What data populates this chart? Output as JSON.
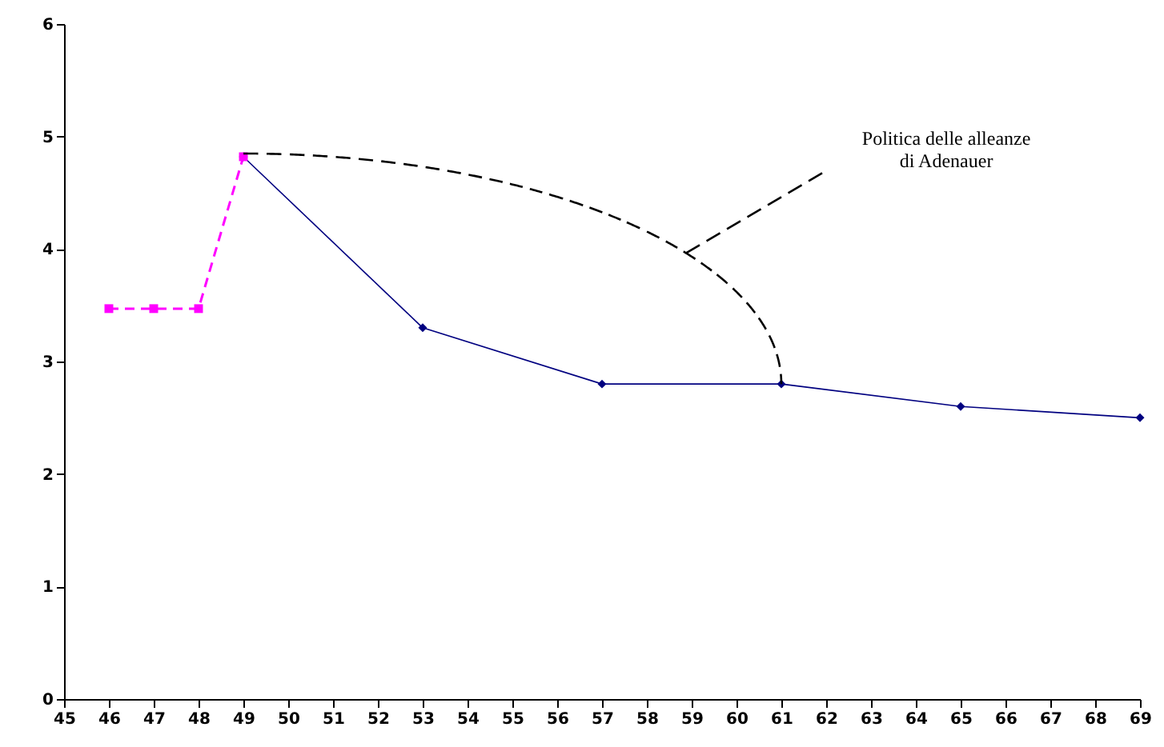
{
  "chart_data": {
    "type": "line",
    "xlim": [
      45,
      69
    ],
    "xticks": [
      45,
      46,
      47,
      48,
      49,
      50,
      51,
      52,
      53,
      54,
      55,
      56,
      57,
      58,
      59,
      60,
      61,
      62,
      63,
      64,
      65,
      66,
      67,
      68,
      69
    ],
    "ylim": [
      0,
      6
    ],
    "yticks": [
      0,
      1,
      2,
      3,
      4,
      5,
      6
    ],
    "series": [
      {
        "color": "#ff00ff",
        "marker": "square",
        "line_style": "dashed",
        "x": [
          46,
          47,
          48,
          49
        ],
        "values": [
          3.47,
          3.47,
          3.47,
          4.82
        ]
      },
      {
        "color": "#000080",
        "marker": "diamond",
        "line_style": "solid",
        "x": [
          49,
          53,
          57,
          61,
          65,
          69
        ],
        "values": [
          4.82,
          3.3,
          2.8,
          2.8,
          2.6,
          2.5
        ]
      }
    ],
    "annotations": [
      "Politica delle alleanze\ndi Adenauer"
    ]
  }
}
